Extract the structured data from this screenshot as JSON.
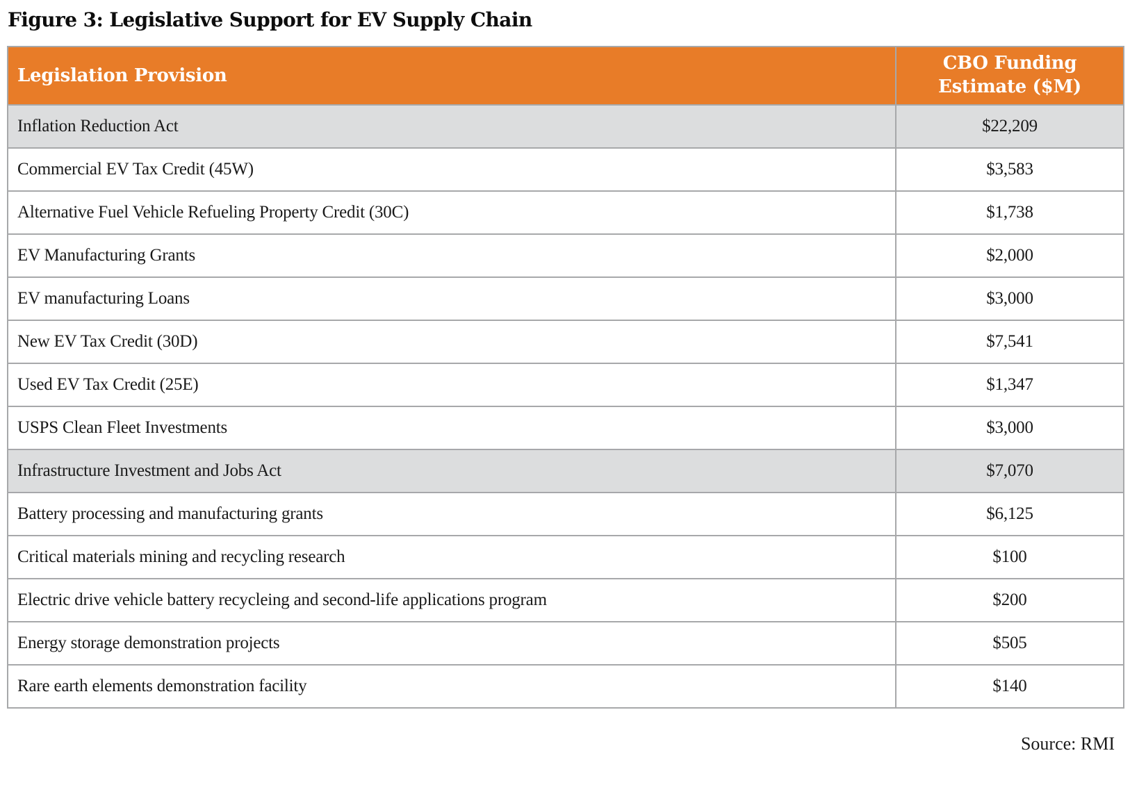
{
  "figure": {
    "title": "Figure 3: Legislative Support for EV Supply Chain",
    "source": "Source: RMI"
  },
  "colors": {
    "header_bg": "#e87c28",
    "header_text": "#ffffff",
    "highlight_row_bg": "#dcddde",
    "border": "#a7a8aa",
    "body_text": "#1a1a1a"
  },
  "table": {
    "columns": [
      {
        "label": "Legislation Provision"
      },
      {
        "label": "CBO Funding Estimate ($M)"
      }
    ],
    "rows": [
      {
        "label": "Inflation Reduction Act",
        "value": "$22,209",
        "highlight": true
      },
      {
        "label": "Commercial EV Tax Credit (45W)",
        "value": "$3,583",
        "highlight": false
      },
      {
        "label": "Alternative Fuel Vehicle Refueling Property Credit (30C)",
        "value": "$1,738",
        "highlight": false
      },
      {
        "label": "EV Manufacturing Grants",
        "value": "$2,000",
        "highlight": false
      },
      {
        "label": "EV manufacturing Loans",
        "value": "$3,000",
        "highlight": false
      },
      {
        "label": "New EV Tax Credit (30D)",
        "value": "$7,541",
        "highlight": false
      },
      {
        "label": "Used EV Tax Credit (25E)",
        "value": "$1,347",
        "highlight": false
      },
      {
        "label": "USPS Clean Fleet Investments",
        "value": "$3,000",
        "highlight": false
      },
      {
        "label": "Infrastructure Investment and Jobs Act",
        "value": "$7,070",
        "highlight": true
      },
      {
        "label": "Battery processing and manufacturing grants",
        "value": "$6,125",
        "highlight": false
      },
      {
        "label": "Critical materials mining and recycling research",
        "value": "$100",
        "highlight": false
      },
      {
        "label": "Electric drive vehicle battery recycleing and second-life applications program",
        "value": "$200",
        "highlight": false
      },
      {
        "label": "Energy storage demonstration projects",
        "value": "$505",
        "highlight": false
      },
      {
        "label": "Rare earth elements demonstration facility",
        "value": "$140",
        "highlight": false
      }
    ]
  }
}
